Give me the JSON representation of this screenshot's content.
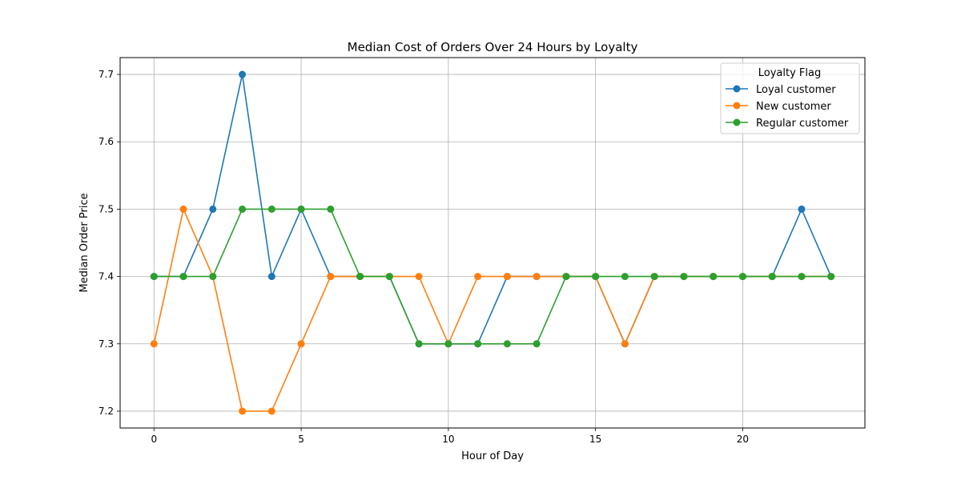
{
  "chart_data": {
    "type": "line",
    "title": "Median Cost of Orders Over 24 Hours by Loyalty",
    "xlabel": "Hour of Day",
    "ylabel": "Median Order Price",
    "x": [
      0,
      1,
      2,
      3,
      4,
      5,
      6,
      7,
      8,
      9,
      10,
      11,
      12,
      13,
      14,
      15,
      16,
      17,
      18,
      19,
      20,
      21,
      22,
      23
    ],
    "xlim": [
      -1.15,
      24.15
    ],
    "ylim": [
      7.175,
      7.725
    ],
    "xticks": [
      0,
      5,
      10,
      15,
      20
    ],
    "yticks": [
      7.2,
      7.3,
      7.4,
      7.5,
      7.6,
      7.7
    ],
    "grid": true,
    "legend": {
      "title": "Loyalty Flag",
      "placement": "top-right"
    },
    "series": [
      {
        "name": "Loyal customer",
        "color": "#1f77b4",
        "values": [
          7.4,
          7.4,
          7.5,
          7.7,
          7.4,
          7.5,
          7.4,
          7.4,
          7.4,
          7.3,
          7.3,
          7.3,
          7.4,
          7.4,
          7.4,
          7.4,
          7.3,
          7.4,
          7.4,
          7.4,
          7.4,
          7.4,
          7.5,
          7.4
        ]
      },
      {
        "name": "New customer",
        "color": "#ff7f0e",
        "values": [
          7.3,
          7.5,
          7.4,
          7.2,
          7.2,
          7.3,
          7.4,
          7.4,
          7.4,
          7.4,
          7.3,
          7.4,
          7.4,
          7.4,
          7.4,
          7.4,
          7.3,
          7.4,
          7.4,
          7.4,
          7.4,
          7.4,
          7.4,
          7.4
        ]
      },
      {
        "name": "Regular customer",
        "color": "#2ca02c",
        "values": [
          7.4,
          7.4,
          7.4,
          7.5,
          7.5,
          7.5,
          7.5,
          7.4,
          7.4,
          7.3,
          7.3,
          7.3,
          7.3,
          7.3,
          7.4,
          7.4,
          7.4,
          7.4,
          7.4,
          7.4,
          7.4,
          7.4,
          7.4,
          7.4
        ]
      }
    ]
  }
}
